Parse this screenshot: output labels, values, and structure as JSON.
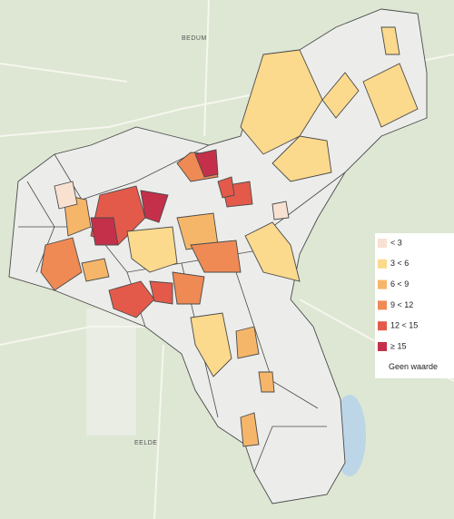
{
  "places": [
    {
      "label": "BEDUM"
    },
    {
      "label": "EELDE"
    }
  ],
  "legend": {
    "items": [
      {
        "label": "< 3",
        "color": "#f9e1d2"
      },
      {
        "label": "3 < 6",
        "color": "#fbd98d"
      },
      {
        "label": "6 < 9",
        "color": "#f5b66a"
      },
      {
        "label": "9 < 12",
        "color": "#ef8a55"
      },
      {
        "label": "12 < 15",
        "color": "#e35a4b"
      },
      {
        "label": "≥ 15",
        "color": "#c4304a"
      },
      {
        "label": "Geen waarde"
      }
    ]
  }
}
